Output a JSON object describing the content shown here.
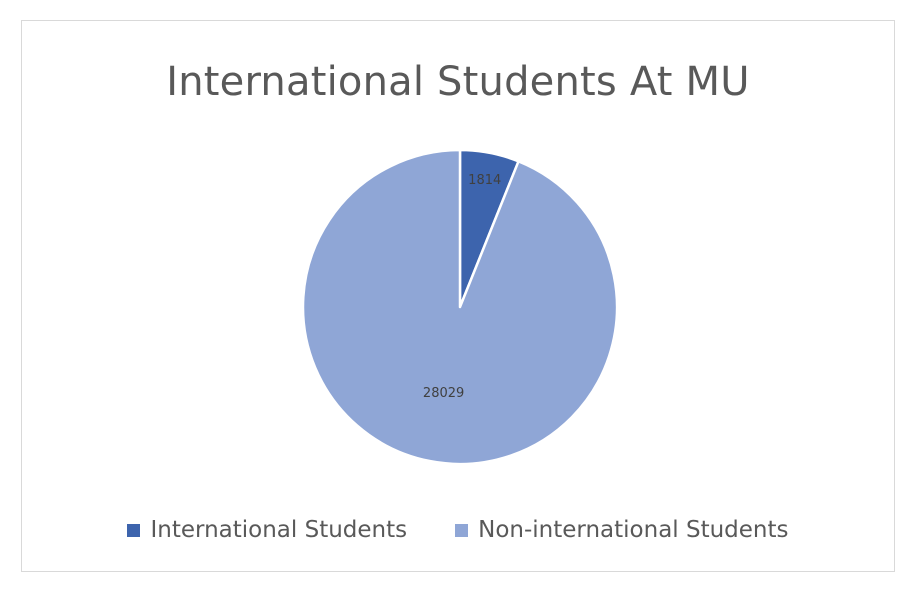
{
  "chart_data": {
    "type": "pie",
    "title": "International Students At MU",
    "slices": [
      {
        "label": "International Students",
        "value": 1814,
        "color": "#3d64ad"
      },
      {
        "label": "Non-international Students",
        "value": 28029,
        "color": "#8fa6d6"
      }
    ],
    "data_labels_shown": true,
    "legend_position": "bottom"
  }
}
